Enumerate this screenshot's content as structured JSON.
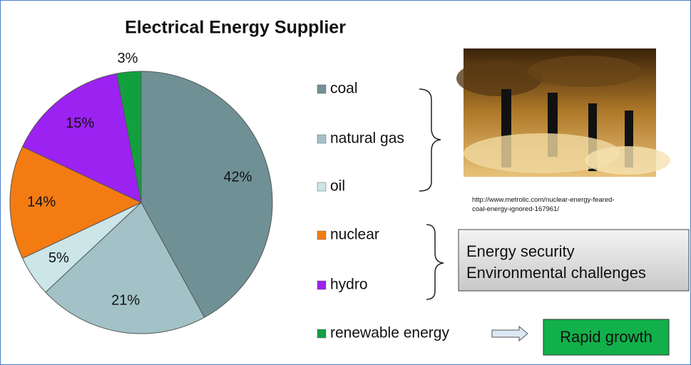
{
  "chart_data": {
    "type": "pie",
    "title": "Electrical Energy Supplier",
    "categories": [
      "coal",
      "natural gas",
      "oil",
      "nuclear",
      "hydro",
      "renewable energy"
    ],
    "values": [
      42,
      21,
      5,
      14,
      15,
      3
    ],
    "value_labels": [
      "42%",
      "21%",
      "5%",
      "14%",
      "15%",
      "3%"
    ],
    "colors": [
      "#6f9196",
      "#a2c2c7",
      "#cbe5e9",
      "#f47b12",
      "#9b22f0",
      "#12a03f"
    ],
    "legend": "right",
    "image_caption": "http://www.metrolic.com/nuclear-energy-feared-coal-energy-ignored-167961/",
    "notes": [
      "Energy security",
      "Environmental challenges"
    ],
    "highlight": "Rapid growth"
  }
}
